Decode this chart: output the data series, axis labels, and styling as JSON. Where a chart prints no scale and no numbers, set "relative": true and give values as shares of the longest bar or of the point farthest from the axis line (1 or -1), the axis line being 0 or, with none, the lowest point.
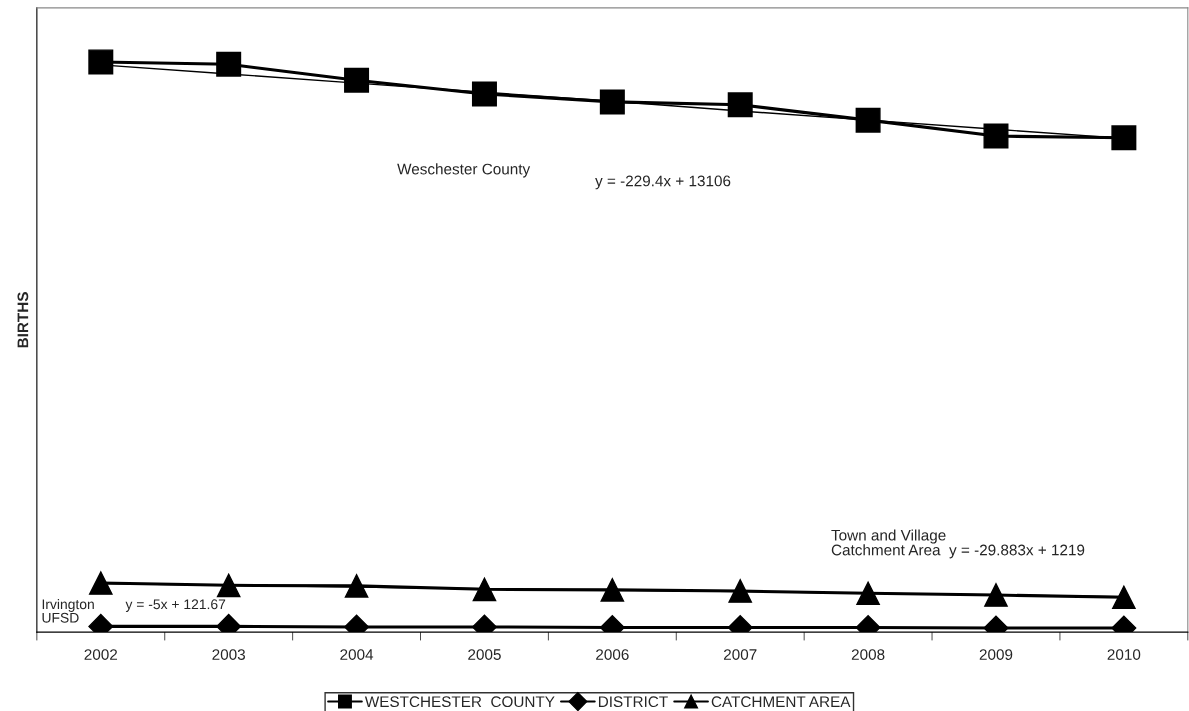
{
  "chart_data": {
    "type": "line",
    "ylabel": "BIRTHS",
    "relative": true,
    "legend": "bottom",
    "grid": false,
    "categories": [
      "2002",
      "2003",
      "2004",
      "2005",
      "2006",
      "2007",
      "2008",
      "2009",
      "2010"
    ],
    "series": [
      {
        "name": "WESTCHESTER  COUNTY",
        "color": "#000000",
        "marker": "square",
        "values": [
          1.0,
          0.996,
          0.968,
          0.944,
          0.93,
          0.925,
          0.898,
          0.87,
          0.867
        ]
      },
      {
        "name": "DISTRICT",
        "color": "#000000",
        "marker": "diamond",
        "values": [
          0.01,
          0.01,
          0.009,
          0.009,
          0.008,
          0.008,
          0.008,
          0.007,
          0.007
        ]
      },
      {
        "name": "CATCHMENT AREA",
        "color": "#000000",
        "marker": "triangle",
        "values": [
          0.086,
          0.082,
          0.081,
          0.075,
          0.074,
          0.072,
          0.068,
          0.065,
          0.061
        ]
      },
      {
        "color": "#000000",
        "marker": "none",
        "values": [
          0.995,
          0.979,
          0.963,
          0.947,
          0.931,
          0.914,
          0.898,
          0.882,
          0.866
        ]
      },
      {
        "color": "#000000",
        "marker": "none",
        "values": [
          0.085,
          0.082,
          0.079,
          0.076,
          0.0735,
          0.071,
          0.068,
          0.065,
          0.062
        ]
      }
    ],
    "annotations": [
      "Weschester County",
      "y = -229.4x + 13106",
      "Town and Village\nCatchment Area  y = -29.883x + 1219",
      "Irvington\nUFSD",
      "y = -5x + 121.67"
    ]
  }
}
